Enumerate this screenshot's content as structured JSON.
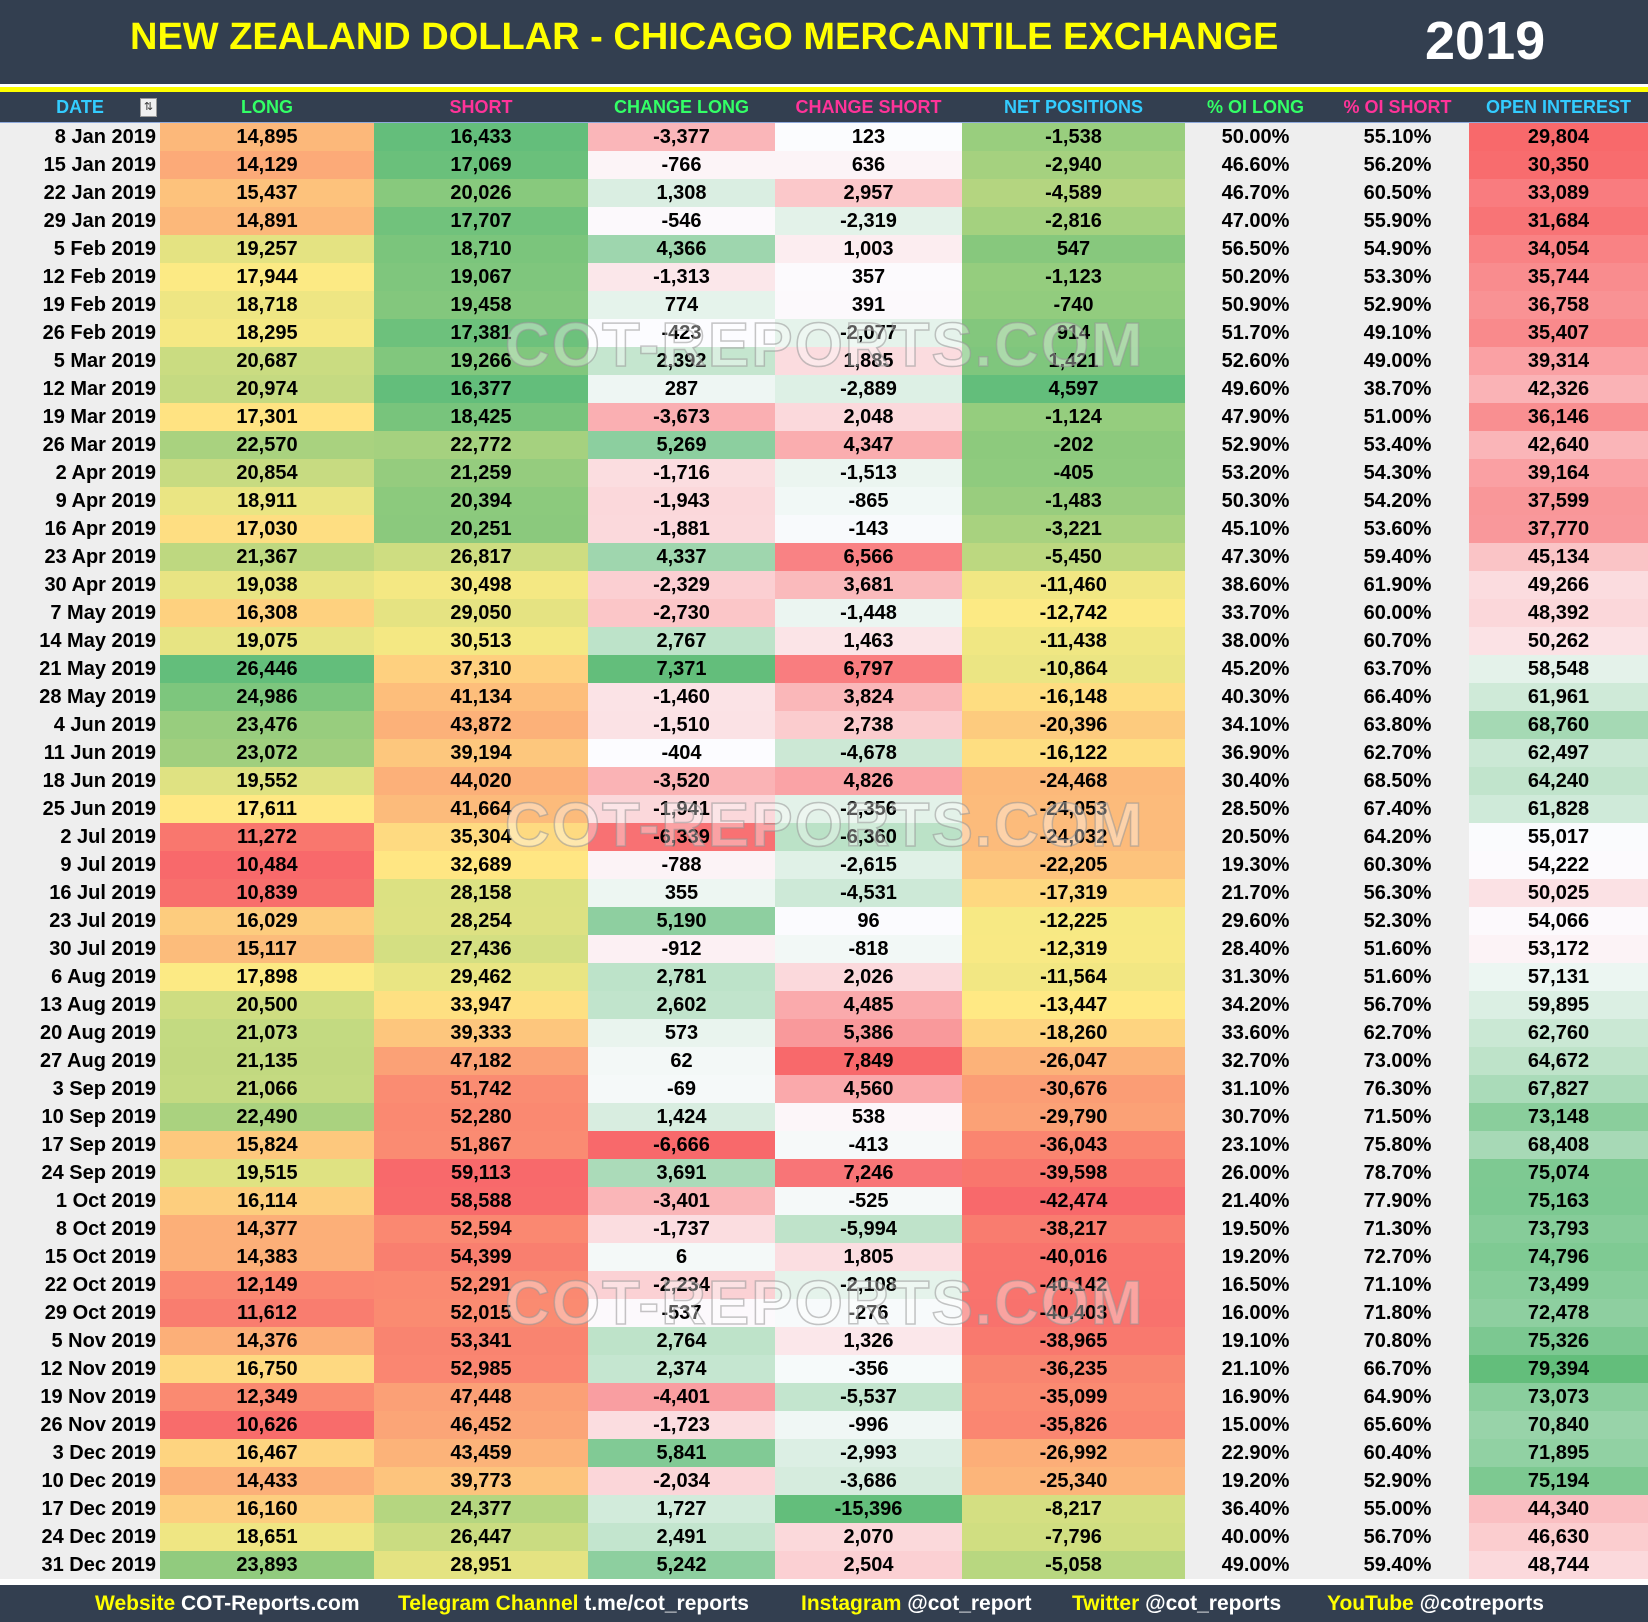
{
  "header": {
    "title": "NEW ZEALAND DOLLAR - CHICAGO MERCANTILE EXCHANGE",
    "year": "2019"
  },
  "columns": [
    {
      "label": "DATE",
      "color": "#33ccff"
    },
    {
      "label": "LONG",
      "color": "#33ff66"
    },
    {
      "label": "SHORT",
      "color": "#ff3399"
    },
    {
      "label": "CHANGE LONG",
      "color": "#33ff66"
    },
    {
      "label": "CHANGE SHORT",
      "color": "#ff3399"
    },
    {
      "label": "NET POSITIONS",
      "color": "#33ccff"
    },
    {
      "label": "% OI LONG",
      "color": "#33ff66"
    },
    {
      "label": "% OI SHORT",
      "color": "#ff3399"
    },
    {
      "label": "OPEN INTEREST",
      "color": "#33ccff"
    }
  ],
  "filter_icon": "filter-sort-icon",
  "colors": {
    "red": "#f8696b",
    "yellow": "#ffeb84",
    "green": "#63be7b",
    "white": "#fcfcff",
    "background": "#333f50",
    "title": "#ffff00"
  },
  "rows": [
    [
      "8 Jan 2019",
      "14,895",
      "16,433",
      "-3,377",
      "123",
      "-1,538",
      "50.00%",
      "55.10%",
      "29,804"
    ],
    [
      "15 Jan 2019",
      "14,129",
      "17,069",
      "-766",
      "636",
      "-2,940",
      "46.60%",
      "56.20%",
      "30,350"
    ],
    [
      "22 Jan 2019",
      "15,437",
      "20,026",
      "1,308",
      "2,957",
      "-4,589",
      "46.70%",
      "60.50%",
      "33,089"
    ],
    [
      "29 Jan 2019",
      "14,891",
      "17,707",
      "-546",
      "-2,319",
      "-2,816",
      "47.00%",
      "55.90%",
      "31,684"
    ],
    [
      "5 Feb 2019",
      "19,257",
      "18,710",
      "4,366",
      "1,003",
      "547",
      "56.50%",
      "54.90%",
      "34,054"
    ],
    [
      "12 Feb 2019",
      "17,944",
      "19,067",
      "-1,313",
      "357",
      "-1,123",
      "50.20%",
      "53.30%",
      "35,744"
    ],
    [
      "19 Feb 2019",
      "18,718",
      "19,458",
      "774",
      "391",
      "-740",
      "50.90%",
      "52.90%",
      "36,758"
    ],
    [
      "26 Feb 2019",
      "18,295",
      "17,381",
      "-423",
      "-2,077",
      "914",
      "51.70%",
      "49.10%",
      "35,407"
    ],
    [
      "5 Mar 2019",
      "20,687",
      "19,266",
      "2,392",
      "1,885",
      "1,421",
      "52.60%",
      "49.00%",
      "39,314"
    ],
    [
      "12 Mar 2019",
      "20,974",
      "16,377",
      "287",
      "-2,889",
      "4,597",
      "49.60%",
      "38.70%",
      "42,326"
    ],
    [
      "19 Mar 2019",
      "17,301",
      "18,425",
      "-3,673",
      "2,048",
      "-1,124",
      "47.90%",
      "51.00%",
      "36,146"
    ],
    [
      "26 Mar 2019",
      "22,570",
      "22,772",
      "5,269",
      "4,347",
      "-202",
      "52.90%",
      "53.40%",
      "42,640"
    ],
    [
      "2 Apr 2019",
      "20,854",
      "21,259",
      "-1,716",
      "-1,513",
      "-405",
      "53.20%",
      "54.30%",
      "39,164"
    ],
    [
      "9 Apr 2019",
      "18,911",
      "20,394",
      "-1,943",
      "-865",
      "-1,483",
      "50.30%",
      "54.20%",
      "37,599"
    ],
    [
      "16 Apr 2019",
      "17,030",
      "20,251",
      "-1,881",
      "-143",
      "-3,221",
      "45.10%",
      "53.60%",
      "37,770"
    ],
    [
      "23 Apr 2019",
      "21,367",
      "26,817",
      "4,337",
      "6,566",
      "-5,450",
      "47.30%",
      "59.40%",
      "45,134"
    ],
    [
      "30 Apr 2019",
      "19,038",
      "30,498",
      "-2,329",
      "3,681",
      "-11,460",
      "38.60%",
      "61.90%",
      "49,266"
    ],
    [
      "7 May 2019",
      "16,308",
      "29,050",
      "-2,730",
      "-1,448",
      "-12,742",
      "33.70%",
      "60.00%",
      "48,392"
    ],
    [
      "14 May 2019",
      "19,075",
      "30,513",
      "2,767",
      "1,463",
      "-11,438",
      "38.00%",
      "60.70%",
      "50,262"
    ],
    [
      "21 May 2019",
      "26,446",
      "37,310",
      "7,371",
      "6,797",
      "-10,864",
      "45.20%",
      "63.70%",
      "58,548"
    ],
    [
      "28 May 2019",
      "24,986",
      "41,134",
      "-1,460",
      "3,824",
      "-16,148",
      "40.30%",
      "66.40%",
      "61,961"
    ],
    [
      "4 Jun 2019",
      "23,476",
      "43,872",
      "-1,510",
      "2,738",
      "-20,396",
      "34.10%",
      "63.80%",
      "68,760"
    ],
    [
      "11 Jun 2019",
      "23,072",
      "39,194",
      "-404",
      "-4,678",
      "-16,122",
      "36.90%",
      "62.70%",
      "62,497"
    ],
    [
      "18 Jun 2019",
      "19,552",
      "44,020",
      "-3,520",
      "4,826",
      "-24,468",
      "30.40%",
      "68.50%",
      "64,240"
    ],
    [
      "25 Jun 2019",
      "17,611",
      "41,664",
      "-1,941",
      "-2,356",
      "-24,053",
      "28.50%",
      "67.40%",
      "61,828"
    ],
    [
      "2 Jul 2019",
      "11,272",
      "35,304",
      "-6,339",
      "-6,360",
      "-24,032",
      "20.50%",
      "64.20%",
      "55,017"
    ],
    [
      "9 Jul 2019",
      "10,484",
      "32,689",
      "-788",
      "-2,615",
      "-22,205",
      "19.30%",
      "60.30%",
      "54,222"
    ],
    [
      "16 Jul 2019",
      "10,839",
      "28,158",
      "355",
      "-4,531",
      "-17,319",
      "21.70%",
      "56.30%",
      "50,025"
    ],
    [
      "23 Jul 2019",
      "16,029",
      "28,254",
      "5,190",
      "96",
      "-12,225",
      "29.60%",
      "52.30%",
      "54,066"
    ],
    [
      "30 Jul 2019",
      "15,117",
      "27,436",
      "-912",
      "-818",
      "-12,319",
      "28.40%",
      "51.60%",
      "53,172"
    ],
    [
      "6 Aug 2019",
      "17,898",
      "29,462",
      "2,781",
      "2,026",
      "-11,564",
      "31.30%",
      "51.60%",
      "57,131"
    ],
    [
      "13 Aug 2019",
      "20,500",
      "33,947",
      "2,602",
      "4,485",
      "-13,447",
      "34.20%",
      "56.70%",
      "59,895"
    ],
    [
      "20 Aug 2019",
      "21,073",
      "39,333",
      "573",
      "5,386",
      "-18,260",
      "33.60%",
      "62.70%",
      "62,760"
    ],
    [
      "27 Aug 2019",
      "21,135",
      "47,182",
      "62",
      "7,849",
      "-26,047",
      "32.70%",
      "73.00%",
      "64,672"
    ],
    [
      "3 Sep 2019",
      "21,066",
      "51,742",
      "-69",
      "4,560",
      "-30,676",
      "31.10%",
      "76.30%",
      "67,827"
    ],
    [
      "10 Sep 2019",
      "22,490",
      "52,280",
      "1,424",
      "538",
      "-29,790",
      "30.70%",
      "71.50%",
      "73,148"
    ],
    [
      "17 Sep 2019",
      "15,824",
      "51,867",
      "-6,666",
      "-413",
      "-36,043",
      "23.10%",
      "75.80%",
      "68,408"
    ],
    [
      "24 Sep 2019",
      "19,515",
      "59,113",
      "3,691",
      "7,246",
      "-39,598",
      "26.00%",
      "78.70%",
      "75,074"
    ],
    [
      "1 Oct 2019",
      "16,114",
      "58,588",
      "-3,401",
      "-525",
      "-42,474",
      "21.40%",
      "77.90%",
      "75,163"
    ],
    [
      "8 Oct 2019",
      "14,377",
      "52,594",
      "-1,737",
      "-5,994",
      "-38,217",
      "19.50%",
      "71.30%",
      "73,793"
    ],
    [
      "15 Oct 2019",
      "14,383",
      "54,399",
      "6",
      "1,805",
      "-40,016",
      "19.20%",
      "72.70%",
      "74,796"
    ],
    [
      "22 Oct 2019",
      "12,149",
      "52,291",
      "-2,234",
      "-2,108",
      "-40,142",
      "16.50%",
      "71.10%",
      "73,499"
    ],
    [
      "29 Oct 2019",
      "11,612",
      "52,015",
      "-537",
      "-276",
      "-40,403",
      "16.00%",
      "71.80%",
      "72,478"
    ],
    [
      "5 Nov 2019",
      "14,376",
      "53,341",
      "2,764",
      "1,326",
      "-38,965",
      "19.10%",
      "70.80%",
      "75,326"
    ],
    [
      "12 Nov 2019",
      "16,750",
      "52,985",
      "2,374",
      "-356",
      "-36,235",
      "21.10%",
      "66.70%",
      "79,394"
    ],
    [
      "19 Nov 2019",
      "12,349",
      "47,448",
      "-4,401",
      "-5,537",
      "-35,099",
      "16.90%",
      "64.90%",
      "73,073"
    ],
    [
      "26 Nov 2019",
      "10,626",
      "46,452",
      "-1,723",
      "-996",
      "-35,826",
      "15.00%",
      "65.60%",
      "70,840"
    ],
    [
      "3 Dec 2019",
      "16,467",
      "43,459",
      "5,841",
      "-2,993",
      "-26,992",
      "22.90%",
      "60.40%",
      "71,895"
    ],
    [
      "10 Dec 2019",
      "14,433",
      "39,773",
      "-2,034",
      "-3,686",
      "-25,340",
      "19.20%",
      "52.90%",
      "75,194"
    ],
    [
      "17 Dec 2019",
      "16,160",
      "24,377",
      "1,727",
      "-15,396",
      "-8,217",
      "36.40%",
      "55.00%",
      "44,340"
    ],
    [
      "24 Dec 2019",
      "18,651",
      "26,447",
      "2,491",
      "2,070",
      "-7,796",
      "40.00%",
      "56.70%",
      "46,630"
    ],
    [
      "31 Dec 2019",
      "23,893",
      "28,951",
      "5,242",
      "2,504",
      "-5,058",
      "49.00%",
      "59.40%",
      "48,744"
    ]
  ],
  "watermark": "COT-REPORTS.COM",
  "footer": [
    {
      "label": "Website",
      "value": "COT-Reports.com"
    },
    {
      "label": "Telegram Channel",
      "value": "t.me/cot_reports"
    },
    {
      "label": "Instagram",
      "value": "@cot_report"
    },
    {
      "label": "Twitter",
      "value": "@cot_reports"
    },
    {
      "label": "YouTube",
      "value": "@cotreports"
    }
  ]
}
